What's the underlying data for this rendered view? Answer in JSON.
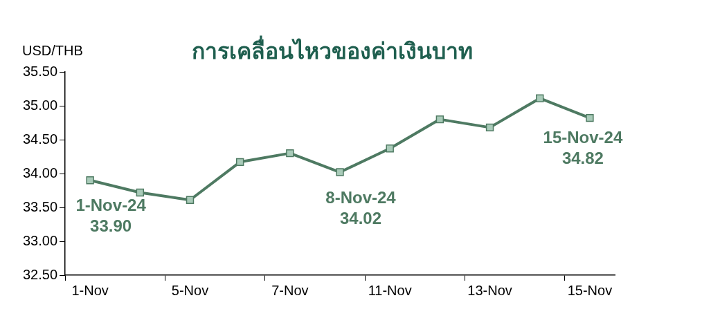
{
  "chart_data": {
    "type": "line",
    "title": "การเคลื่อนไหวของค่าเงินบาท",
    "ylabel": "USD/THB",
    "categories": [
      "1-Nov",
      null,
      "5-Nov",
      null,
      "7-Nov",
      null,
      "11-Nov",
      null,
      "13-Nov",
      null,
      "15-Nov"
    ],
    "series": [
      {
        "color": "#4e7a62",
        "values": [
          33.9,
          33.72,
          33.61,
          34.17,
          34.3,
          34.02,
          34.37,
          34.8,
          34.68,
          35.11,
          34.82
        ],
        "value_labels": [
          "1-Nov-24\n33.90",
          null,
          null,
          null,
          null,
          "8-Nov-24\n34.02",
          null,
          null,
          null,
          null,
          "15-Nov-24\n34.82"
        ]
      }
    ],
    "ylim": [
      32.5,
      35.5
    ],
    "yticks": [
      {
        "value": 32.5,
        "label": "32.50"
      },
      {
        "value": 33,
        "label": "33.00"
      },
      {
        "value": 33.5,
        "label": "33.50"
      },
      {
        "value": 34,
        "label": "34.00"
      },
      {
        "value": 34.5,
        "label": "34.50"
      },
      {
        "value": 35,
        "label": "35.00"
      },
      {
        "value": 35.5,
        "label": "35.50"
      }
    ],
    "grid": false,
    "legend": false,
    "marker": "square",
    "line_style": "solid"
  }
}
